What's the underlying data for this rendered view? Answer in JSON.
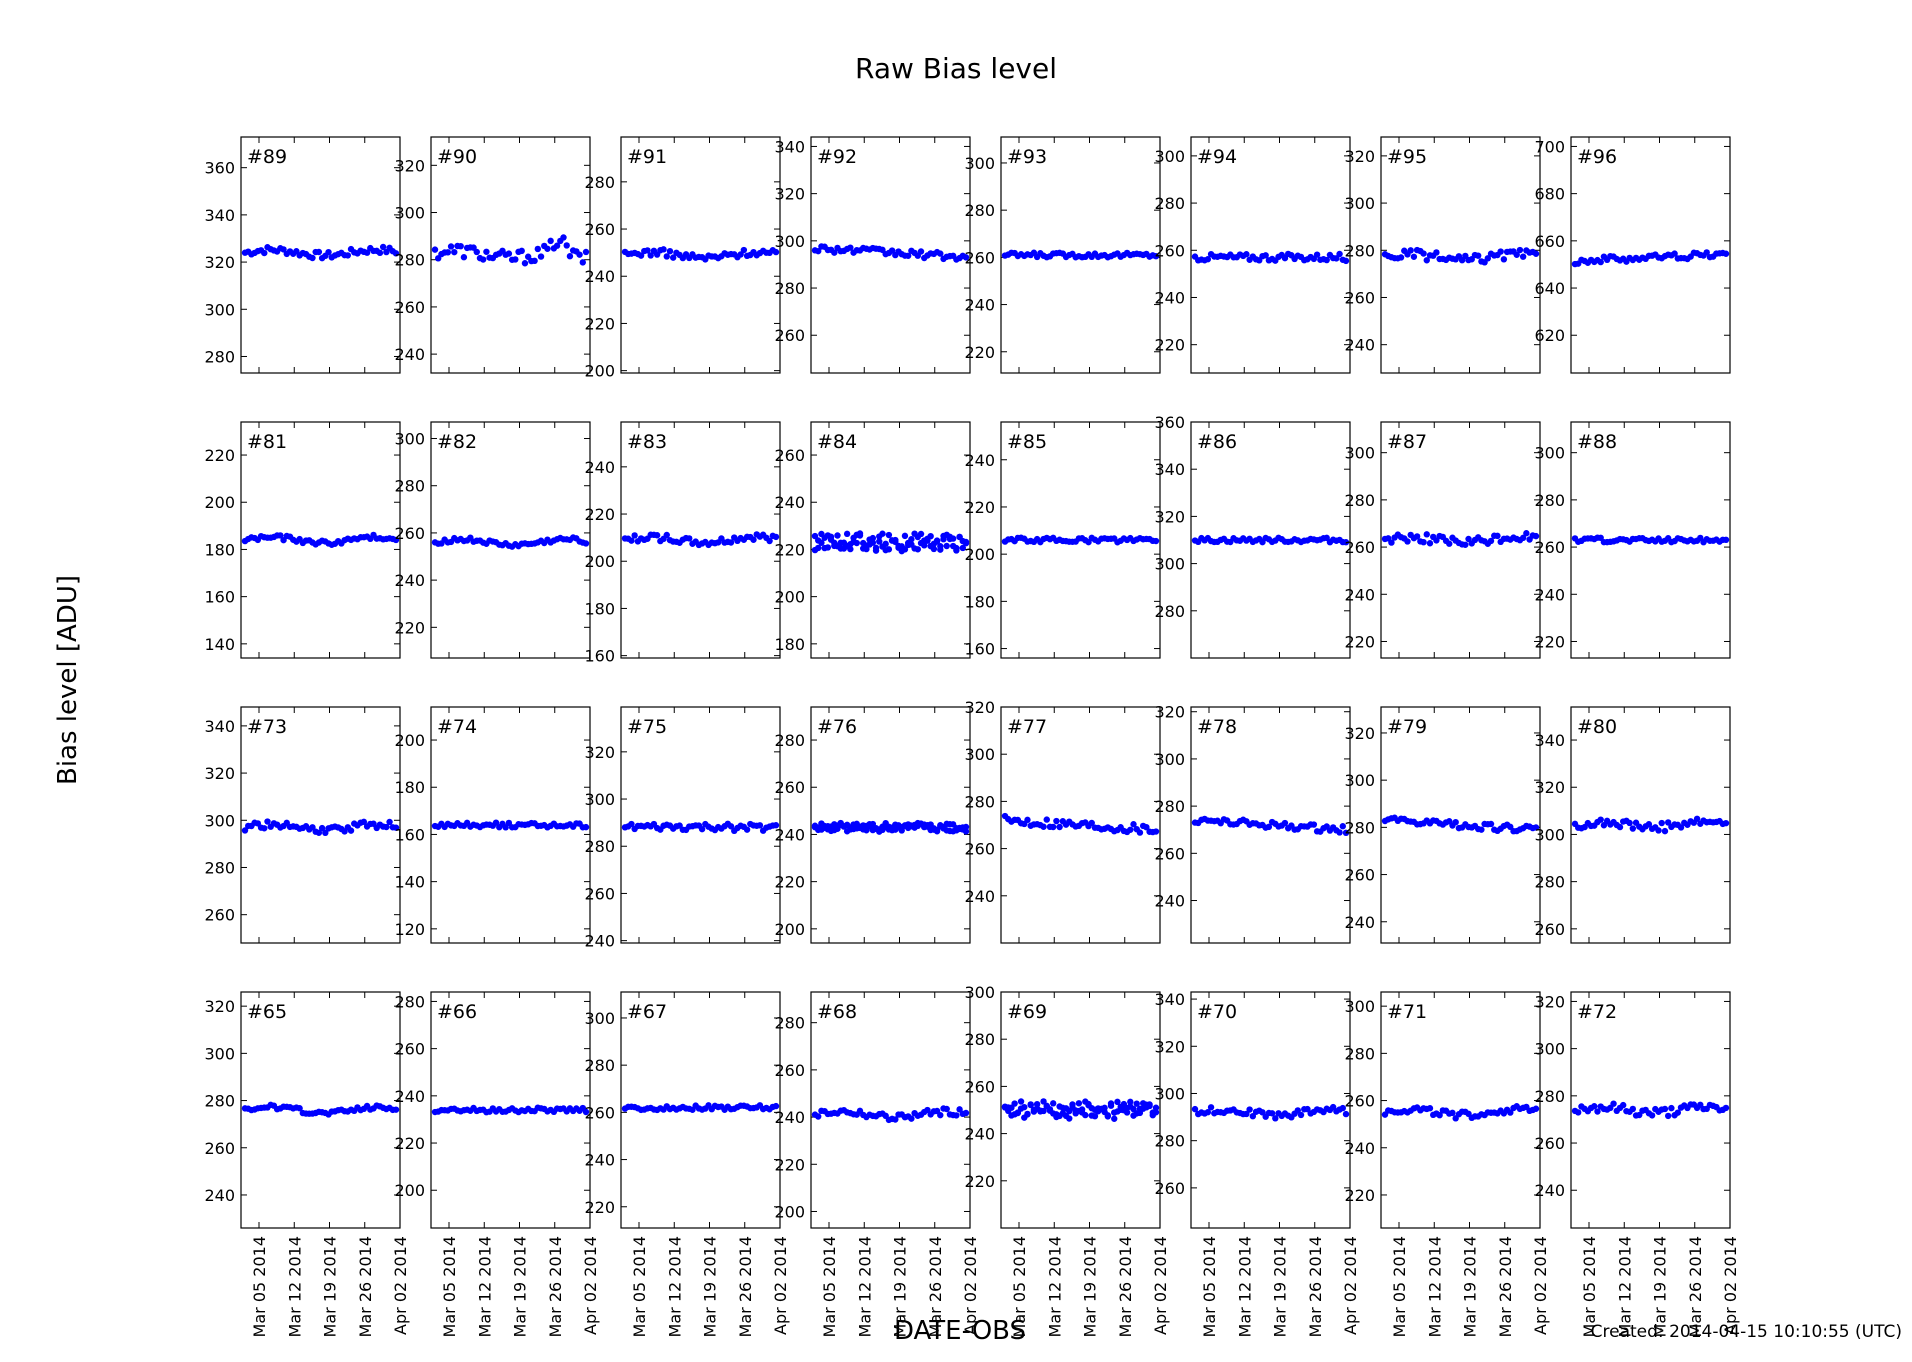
{
  "figure": {
    "title": "Raw Bias level",
    "ylabel": "Bias level [ADU]",
    "xlabel": "DATE-OBS",
    "created": "Created: 2014-04-15 10:10:55 (UTC)",
    "marker_color": "#0000ff",
    "date_ticks": [
      "Mar 05 2014",
      "Mar 12 2014",
      "Mar 19 2014",
      "Mar 26 2014",
      "Apr 02 2014"
    ]
  },
  "chart_data": [
    {
      "type": "scatter",
      "title": "#89",
      "ylim": [
        273,
        373
      ],
      "yticks": [
        280,
        300,
        320,
        340,
        360
      ],
      "center": 324,
      "spread": 1.5,
      "pattern": "wave"
    },
    {
      "type": "scatter",
      "title": "#90",
      "ylim": [
        232,
        332
      ],
      "yticks": [
        240,
        260,
        280,
        300,
        320
      ],
      "center": 283,
      "spread": 3,
      "pattern": "bump"
    },
    {
      "type": "scatter",
      "title": "#91",
      "ylim": [
        199,
        299
      ],
      "yticks": [
        200,
        220,
        240,
        260,
        280
      ],
      "center": 249,
      "spread": 1.5,
      "pattern": "wave"
    },
    {
      "type": "scatter",
      "title": "#92",
      "ylim": [
        244,
        344
      ],
      "yticks": [
        260,
        280,
        300,
        320,
        340
      ],
      "center": 295,
      "spread": 1.5,
      "pattern": "decline"
    },
    {
      "type": "scatter",
      "title": "#93",
      "ylim": [
        211,
        311
      ],
      "yticks": [
        220,
        240,
        260,
        280,
        300
      ],
      "center": 261,
      "spread": 1,
      "pattern": "flat"
    },
    {
      "type": "scatter",
      "title": "#94",
      "ylim": [
        208,
        308
      ],
      "yticks": [
        220,
        240,
        260,
        280,
        300
      ],
      "center": 257,
      "spread": 1.5,
      "pattern": "flat"
    },
    {
      "type": "scatter",
      "title": "#95",
      "ylim": [
        228,
        328
      ],
      "yticks": [
        240,
        260,
        280,
        300,
        320
      ],
      "center": 277,
      "spread": 2,
      "pattern": "wave"
    },
    {
      "type": "scatter",
      "title": "#96",
      "ylim": [
        604,
        704
      ],
      "yticks": [
        620,
        640,
        660,
        680,
        700
      ],
      "center": 653,
      "spread": 1.5,
      "pattern": "rise"
    },
    {
      "type": "scatter",
      "title": "#81",
      "ylim": [
        134,
        234
      ],
      "yticks": [
        140,
        160,
        180,
        200,
        220
      ],
      "center": 184,
      "spread": 1,
      "pattern": "wave"
    },
    {
      "type": "scatter",
      "title": "#82",
      "ylim": [
        207,
        307
      ],
      "yticks": [
        220,
        240,
        260,
        280,
        300
      ],
      "center": 256,
      "spread": 1,
      "pattern": "wave"
    },
    {
      "type": "scatter",
      "title": "#83",
      "ylim": [
        159,
        259
      ],
      "yticks": [
        160,
        180,
        200,
        220,
        240
      ],
      "center": 209,
      "spread": 1.5,
      "pattern": "wave"
    },
    {
      "type": "scatter",
      "title": "#84",
      "ylim": [
        174,
        274
      ],
      "yticks": [
        180,
        200,
        220,
        240,
        260
      ],
      "center": 223,
      "spread": 3,
      "pattern": "noisy"
    },
    {
      "type": "scatter",
      "title": "#85",
      "ylim": [
        156,
        256
      ],
      "yticks": [
        160,
        180,
        200,
        220,
        240
      ],
      "center": 206,
      "spread": 1,
      "pattern": "flat"
    },
    {
      "type": "scatter",
      "title": "#86",
      "ylim": [
        260,
        360
      ],
      "yticks": [
        280,
        300,
        320,
        340,
        360
      ],
      "center": 310,
      "spread": 1,
      "pattern": "flat"
    },
    {
      "type": "scatter",
      "title": "#87",
      "ylim": [
        213,
        313
      ],
      "yticks": [
        220,
        240,
        260,
        280,
        300
      ],
      "center": 263,
      "spread": 2,
      "pattern": "wave"
    },
    {
      "type": "scatter",
      "title": "#88",
      "ylim": [
        213,
        313
      ],
      "yticks": [
        220,
        240,
        260,
        280,
        300
      ],
      "center": 263,
      "spread": 1,
      "pattern": "flat"
    },
    {
      "type": "scatter",
      "title": "#73",
      "ylim": [
        248,
        348
      ],
      "yticks": [
        260,
        280,
        300,
        320,
        340
      ],
      "center": 297,
      "spread": 1.5,
      "pattern": "wave"
    },
    {
      "type": "scatter",
      "title": "#74",
      "ylim": [
        114,
        214
      ],
      "yticks": [
        120,
        140,
        160,
        180,
        200
      ],
      "center": 164,
      "spread": 1,
      "pattern": "flat"
    },
    {
      "type": "scatter",
      "title": "#75",
      "ylim": [
        239,
        339
      ],
      "yticks": [
        240,
        260,
        280,
        300,
        320
      ],
      "center": 288,
      "spread": 1.5,
      "pattern": "flat"
    },
    {
      "type": "scatter",
      "title": "#76",
      "ylim": [
        194,
        294
      ],
      "yticks": [
        200,
        220,
        240,
        260,
        280
      ],
      "center": 243,
      "spread": 1.5,
      "pattern": "noisy"
    },
    {
      "type": "scatter",
      "title": "#77",
      "ylim": [
        220,
        320
      ],
      "yticks": [
        240,
        260,
        280,
        300,
        320
      ],
      "center": 270,
      "spread": 2,
      "pattern": "decline"
    },
    {
      "type": "scatter",
      "title": "#78",
      "ylim": [
        222,
        322
      ],
      "yticks": [
        240,
        260,
        280,
        300,
        320
      ],
      "center": 272,
      "spread": 1.5,
      "pattern": "decline"
    },
    {
      "type": "scatter",
      "title": "#79",
      "ylim": [
        231,
        331
      ],
      "yticks": [
        240,
        260,
        280,
        300,
        320
      ],
      "center": 281,
      "spread": 1.5,
      "pattern": "decline"
    },
    {
      "type": "scatter",
      "title": "#80",
      "ylim": [
        254,
        354
      ],
      "yticks": [
        260,
        280,
        300,
        320,
        340
      ],
      "center": 304,
      "spread": 2,
      "pattern": "wave"
    },
    {
      "type": "scatter",
      "title": "#65",
      "ylim": [
        226,
        326
      ],
      "yticks": [
        240,
        260,
        280,
        300,
        320
      ],
      "center": 276,
      "spread": 1,
      "pattern": "wave"
    },
    {
      "type": "scatter",
      "title": "#66",
      "ylim": [
        184,
        284
      ],
      "yticks": [
        200,
        220,
        240,
        260,
        280
      ],
      "center": 234,
      "spread": 1,
      "pattern": "flat"
    },
    {
      "type": "scatter",
      "title": "#67",
      "ylim": [
        211,
        311
      ],
      "yticks": [
        220,
        240,
        260,
        280,
        300
      ],
      "center": 262,
      "spread": 1,
      "pattern": "flat"
    },
    {
      "type": "scatter",
      "title": "#68",
      "ylim": [
        193,
        293
      ],
      "yticks": [
        200,
        220,
        240,
        260,
        280
      ],
      "center": 241,
      "spread": 1.5,
      "pattern": "wave"
    },
    {
      "type": "scatter",
      "title": "#69",
      "ylim": [
        200,
        300
      ],
      "yticks": [
        220,
        240,
        260,
        280,
        300
      ],
      "center": 250,
      "spread": 3,
      "pattern": "noisy"
    },
    {
      "type": "scatter",
      "title": "#70",
      "ylim": [
        243,
        343
      ],
      "yticks": [
        260,
        280,
        300,
        320,
        340
      ],
      "center": 292,
      "spread": 1.5,
      "pattern": "wave"
    },
    {
      "type": "scatter",
      "title": "#71",
      "ylim": [
        206,
        306
      ],
      "yticks": [
        220,
        240,
        260,
        280,
        300
      ],
      "center": 255,
      "spread": 1.5,
      "pattern": "wave"
    },
    {
      "type": "scatter",
      "title": "#72",
      "ylim": [
        224,
        324
      ],
      "yticks": [
        240,
        260,
        280,
        300,
        320
      ],
      "center": 274,
      "spread": 2,
      "pattern": "wave"
    }
  ]
}
